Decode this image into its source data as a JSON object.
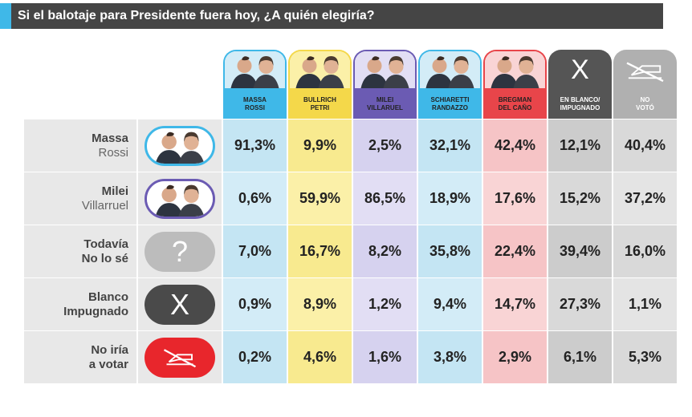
{
  "title": "Si el balotaje para Presidente fuera hoy, ¿A quién elegiría?",
  "columns": [
    {
      "line1": "MASSA",
      "line2": "ROSSI",
      "bg": "#c4e5f3",
      "head": "#3fb8e8",
      "light": "#d3ecf7"
    },
    {
      "line1": "BULLRICH",
      "line2": "PETRI",
      "bg": "#f8ea8f",
      "head": "#f4d84a",
      "light": "#fbf0a8"
    },
    {
      "line1": "MILEI",
      "line2": "VILLARUEL",
      "bg": "#d6d2ef",
      "head": "#6b5bb3",
      "light": "#e2def4"
    },
    {
      "line1": "SCHIARETTI",
      "line2": "RANDAZZO",
      "bg": "#c4e5f3",
      "head": "#3fb8e8",
      "light": "#d3ecf7"
    },
    {
      "line1": "BREGMAN",
      "line2": "DEL CAÑO",
      "bg": "#f6c4c6",
      "head": "#e8454a",
      "light": "#f9d4d5"
    },
    {
      "line1": "EN BLANCO/",
      "line2": "IMPUGNADO",
      "bg": "#cccccc",
      "head": "#555555",
      "light": "#d9d9d9"
    },
    {
      "line1": "NO",
      "line2": "VOTÓ",
      "bg": "#d9d9d9",
      "head": "#b0b0b0",
      "light": "#e4e4e4"
    }
  ],
  "rows": [
    {
      "line1": "Massa",
      "line2": "Rossi",
      "icon": "massa-rossi-photo",
      "icon_color": "#3fb8e8"
    },
    {
      "line1": "Milei",
      "line2": "Villarruel",
      "icon": "milei-villarruel-photo",
      "icon_color": "#6b5bb3"
    },
    {
      "line1": "Todavía",
      "line2": "No lo sé",
      "icon": "question-icon",
      "icon_color": "#bcbcbc"
    },
    {
      "line1": "Blanco",
      "line2": "Impugnado",
      "icon": "x-icon",
      "icon_color": "#4a4a4a"
    },
    {
      "line1": "No iría",
      "line2": "a votar",
      "icon": "no-vote-icon",
      "icon_color": "#e8262c"
    }
  ],
  "symbols": {
    "question": "?",
    "x": "X"
  },
  "chart_data": {
    "type": "table",
    "title": "Si el balotaje para Presidente fuera hoy, ¿A quién elegiría?",
    "columns": [
      "MASSA ROSSI",
      "BULLRICH PETRI",
      "MILEI VILLARUEL",
      "SCHIARETTI RANDAZZO",
      "BREGMAN DEL CAÑO",
      "EN BLANCO/ IMPUGNADO",
      "NO VOTÓ"
    ],
    "rows": [
      "Massa Rossi",
      "Milei Villarruel",
      "Todavía No lo sé",
      "Blanco Impugnado",
      "No iría a votar"
    ],
    "values": [
      [
        "91,3%",
        "9,9%",
        "2,5%",
        "32,1%",
        "42,4%",
        "12,1%",
        "40,4%"
      ],
      [
        "0,6%",
        "59,9%",
        "86,5%",
        "18,9%",
        "17,6%",
        "15,2%",
        "37,2%"
      ],
      [
        "7,0%",
        "16,7%",
        "8,2%",
        "35,8%",
        "22,4%",
        "39,4%",
        "16,0%"
      ],
      [
        "0,9%",
        "8,9%",
        "1,2%",
        "9,4%",
        "14,7%",
        "27,3%",
        "1,1%"
      ],
      [
        "0,2%",
        "4,6%",
        "1,6%",
        "3,8%",
        "2,9%",
        "6,1%",
        "5,3%"
      ]
    ]
  }
}
